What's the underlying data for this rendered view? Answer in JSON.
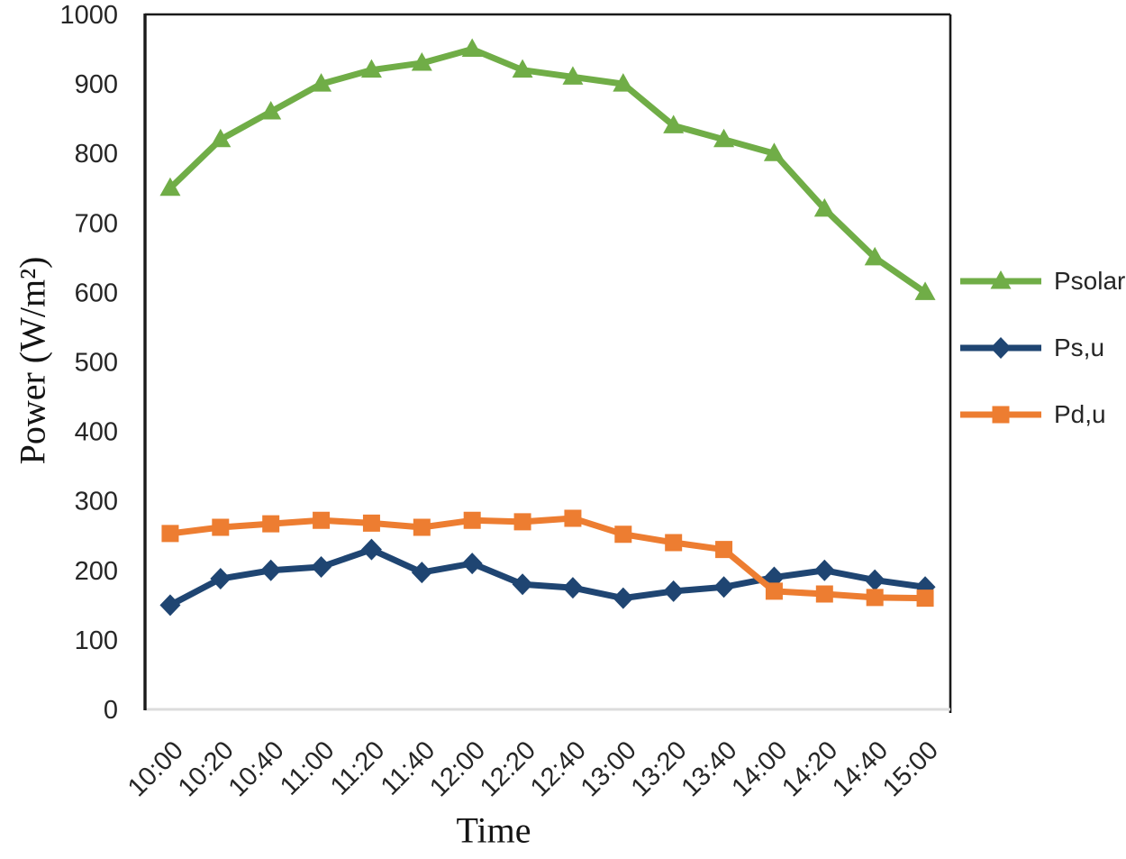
{
  "chart_data": {
    "type": "line",
    "title": "",
    "xlabel": "Time",
    "ylabel": "Power (W/m²)",
    "ylim": [
      0,
      1000
    ],
    "yticks": [
      0,
      100,
      200,
      300,
      400,
      500,
      600,
      700,
      800,
      900,
      1000
    ],
    "grid": false,
    "legend_position": "right",
    "categories": [
      "10:00",
      "10:20",
      "10:40",
      "11:00",
      "11:20",
      "11:40",
      "12:00",
      "12:20",
      "12:40",
      "13:00",
      "13:20",
      "13:40",
      "14:00",
      "14:20",
      "14:40",
      "15:00"
    ],
    "series": [
      {
        "name": "Psolar",
        "marker": "triangle",
        "color": "#70AD47",
        "values": [
          750,
          820,
          860,
          900,
          920,
          930,
          950,
          920,
          910,
          900,
          840,
          820,
          800,
          720,
          650,
          600
        ]
      },
      {
        "name": "Ps,u",
        "marker": "diamond",
        "color": "#1F4572",
        "values": [
          150,
          188,
          200,
          205,
          230,
          197,
          210,
          180,
          175,
          160,
          170,
          176,
          190,
          200,
          186,
          176
        ]
      },
      {
        "name": "Pd,u",
        "marker": "square",
        "color": "#ED7D31",
        "values": [
          253,
          262,
          267,
          272,
          268,
          262,
          272,
          270,
          275,
          252,
          240,
          230,
          170,
          166,
          161,
          160
        ]
      }
    ],
    "axis_colors": {
      "frame": "#1a1a1a",
      "bottom_axis": "#dcdcdc",
      "tick_text": "#262626"
    }
  }
}
